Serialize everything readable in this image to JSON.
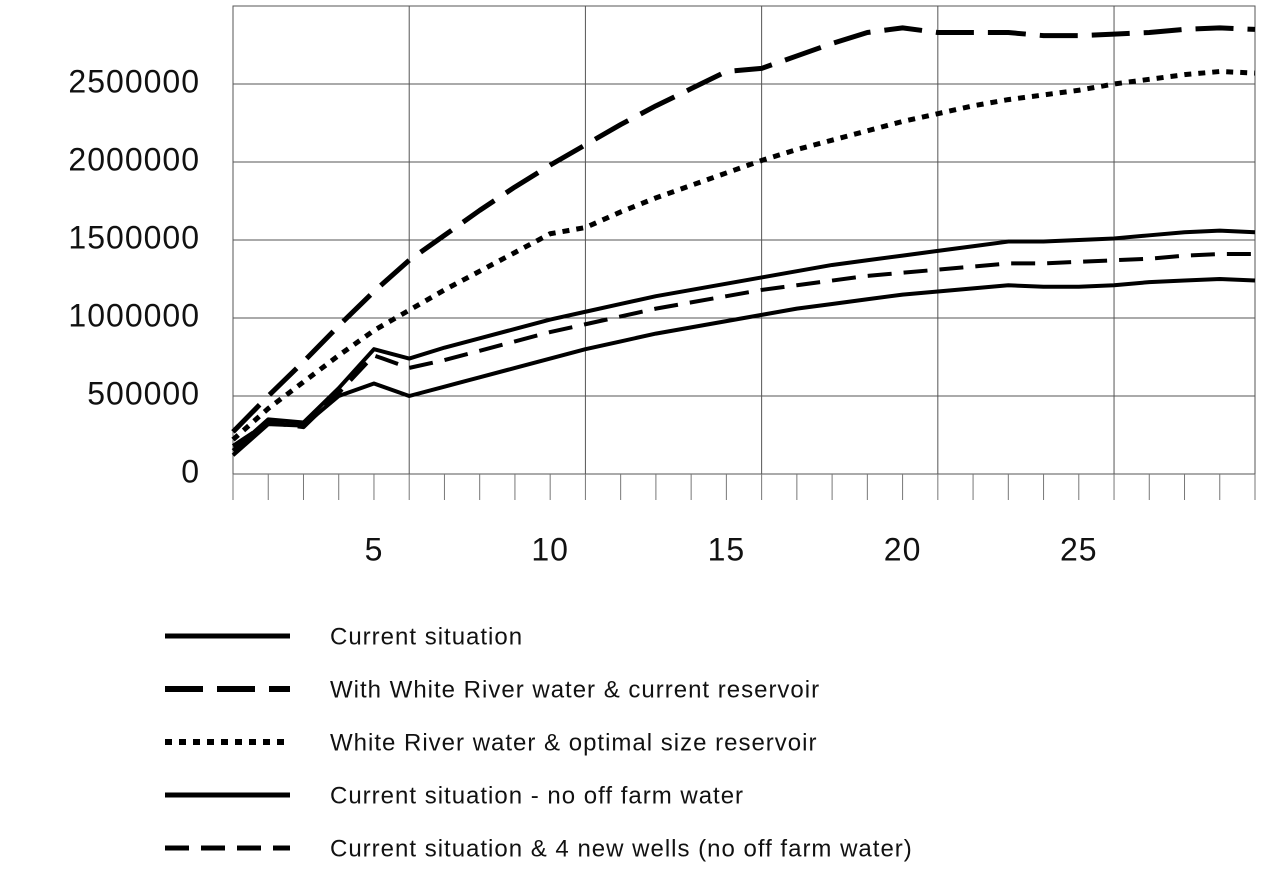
{
  "chart_data": {
    "type": "line",
    "x": [
      1,
      2,
      3,
      4,
      5,
      6,
      7,
      8,
      9,
      10,
      11,
      12,
      13,
      14,
      15,
      16,
      17,
      18,
      19,
      20,
      21,
      22,
      23,
      24,
      25,
      26,
      27,
      28,
      29,
      30
    ],
    "xlim": [
      1,
      30
    ],
    "xticks": [
      5,
      10,
      15,
      20,
      25
    ],
    "xgrid": [
      1,
      6,
      11,
      16,
      21,
      26
    ],
    "ylim": [
      0,
      3000000
    ],
    "yticks": [
      0,
      500000,
      1000000,
      1500000,
      2000000,
      2500000
    ],
    "grid": true,
    "series": [
      {
        "name": "Current situation",
        "color": "#000000",
        "dash": "solid",
        "values": [
          150000,
          350000,
          330000,
          550000,
          800000,
          740000,
          810000,
          870000,
          930000,
          990000,
          1040000,
          1090000,
          1140000,
          1180000,
          1220000,
          1260000,
          1300000,
          1340000,
          1370000,
          1400000,
          1430000,
          1460000,
          1490000,
          1490000,
          1500000,
          1510000,
          1530000,
          1550000,
          1560000,
          1550000
        ]
      },
      {
        "name": "With White River water  & current reservoir",
        "color": "#000000",
        "dash": "long",
        "values": [
          270000,
          500000,
          720000,
          950000,
          1170000,
          1370000,
          1530000,
          1690000,
          1840000,
          1980000,
          2110000,
          2240000,
          2360000,
          2470000,
          2580000,
          2600000,
          2680000,
          2760000,
          2830000,
          2860000,
          2830000,
          2830000,
          2830000,
          2810000,
          2810000,
          2820000,
          2830000,
          2850000,
          2860000,
          2850000
        ]
      },
      {
        "name": "White River  water & optimal size reservoir",
        "color": "#000000",
        "dash": "dot",
        "values": [
          220000,
          420000,
          590000,
          760000,
          920000,
          1050000,
          1180000,
          1300000,
          1420000,
          1540000,
          1580000,
          1680000,
          1770000,
          1850000,
          1930000,
          2010000,
          2080000,
          2140000,
          2200000,
          2260000,
          2310000,
          2360000,
          2400000,
          2430000,
          2460000,
          2500000,
          2530000,
          2560000,
          2580000,
          2570000
        ]
      },
      {
        "name": "Current situation - no off farm water",
        "color": "#000000",
        "dash": "solid",
        "values": [
          120000,
          320000,
          310000,
          500000,
          580000,
          500000,
          560000,
          620000,
          680000,
          740000,
          800000,
          850000,
          900000,
          940000,
          980000,
          1020000,
          1060000,
          1090000,
          1120000,
          1150000,
          1170000,
          1190000,
          1210000,
          1200000,
          1200000,
          1210000,
          1230000,
          1240000,
          1250000,
          1240000
        ]
      },
      {
        "name": "Current situation & 4 new wells (no off farm water)",
        "color": "#000000",
        "dash": "medium",
        "values": [
          180000,
          330000,
          300000,
          520000,
          760000,
          680000,
          730000,
          790000,
          850000,
          910000,
          960000,
          1010000,
          1060000,
          1100000,
          1140000,
          1180000,
          1210000,
          1240000,
          1270000,
          1290000,
          1310000,
          1330000,
          1350000,
          1350000,
          1360000,
          1370000,
          1380000,
          1400000,
          1410000,
          1410000
        ]
      }
    ]
  }
}
